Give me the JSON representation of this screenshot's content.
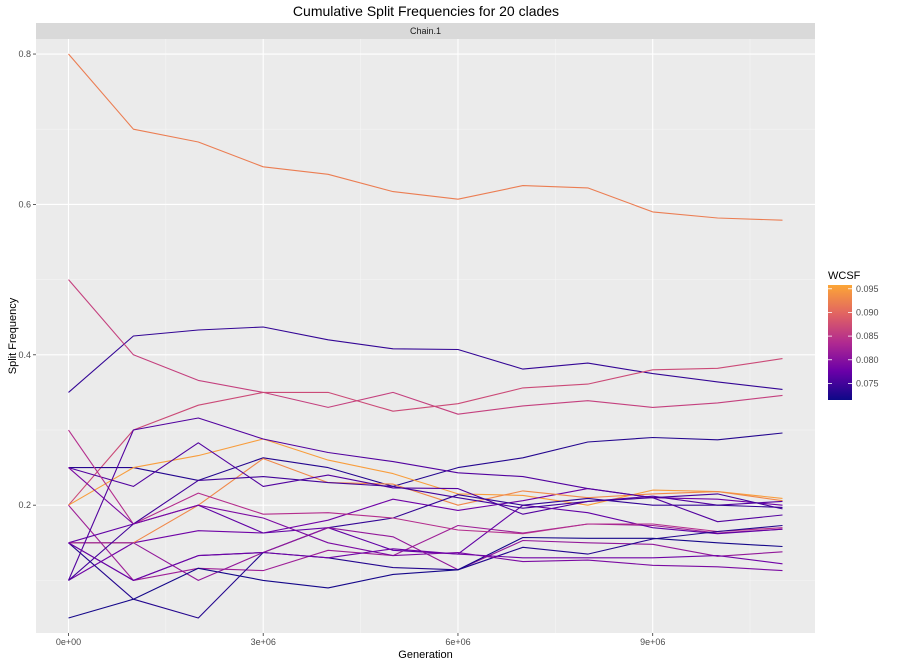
{
  "chart_data": {
    "type": "line",
    "title": "Cumulative Split Frequencies for 20 clades",
    "facet_label": "Chain.1",
    "xlabel": "Generation",
    "ylabel": "Split Frequency",
    "x_ticks": [
      0,
      3000000,
      6000000,
      9000000
    ],
    "x_tick_labels": [
      "0e+00",
      "3e+06",
      "6e+06",
      "9e+06"
    ],
    "y_ticks": [
      0.2,
      0.4,
      0.6,
      0.8
    ],
    "y_tick_labels": [
      "0.2",
      "0.4",
      "0.6",
      "0.8"
    ],
    "xlim": [
      -500000,
      11500000
    ],
    "ylim": [
      0.03,
      0.82
    ],
    "grid": true,
    "x": [
      0,
      1000000,
      2000000,
      3000000,
      4000000,
      5000000,
      6000000,
      7000000,
      8000000,
      9000000,
      10000000,
      11000000
    ],
    "legend": {
      "title": "WCSF",
      "position": "right",
      "range": [
        0.0715,
        0.0958
      ],
      "ticks": [
        0.075,
        0.08,
        0.085,
        0.09,
        0.095
      ],
      "tick_labels": [
        "0.075",
        "0.080",
        "0.085",
        "0.090",
        "0.095"
      ],
      "colors": [
        "#0d0887",
        "#6a00a8",
        "#b12a90",
        "#e16462",
        "#fca636"
      ]
    },
    "series": [
      {
        "wcsf": 0.092,
        "values": [
          0.8,
          0.7,
          0.683,
          0.65,
          0.64,
          0.617,
          0.607,
          0.625,
          0.622,
          0.59,
          0.582,
          0.579
        ]
      },
      {
        "wcsf": 0.074,
        "values": [
          0.35,
          0.425,
          0.433,
          0.437,
          0.42,
          0.408,
          0.407,
          0.381,
          0.389,
          0.375,
          0.364,
          0.354
        ]
      },
      {
        "wcsf": 0.086,
        "values": [
          0.5,
          0.4,
          0.366,
          0.35,
          0.33,
          0.35,
          0.321,
          0.332,
          0.339,
          0.33,
          0.336,
          0.346
        ]
      },
      {
        "wcsf": 0.087,
        "values": [
          0.2,
          0.3,
          0.333,
          0.35,
          0.35,
          0.325,
          0.335,
          0.356,
          0.361,
          0.38,
          0.382,
          0.395
        ]
      },
      {
        "wcsf": 0.073,
        "values": [
          0.25,
          0.25,
          0.233,
          0.263,
          0.25,
          0.225,
          0.25,
          0.263,
          0.284,
          0.29,
          0.287,
          0.296
        ]
      },
      {
        "wcsf": 0.095,
        "values": [
          0.2,
          0.25,
          0.266,
          0.288,
          0.26,
          0.242,
          0.215,
          0.213,
          0.2,
          0.22,
          0.218,
          0.209
        ]
      },
      {
        "wcsf": 0.078,
        "values": [
          0.1,
          0.15,
          0.166,
          0.163,
          0.18,
          0.208,
          0.193,
          0.206,
          0.222,
          0.21,
          0.208,
          0.2
        ]
      },
      {
        "wcsf": 0.093,
        "values": [
          0.15,
          0.15,
          0.2,
          0.262,
          0.23,
          0.228,
          0.2,
          0.219,
          0.21,
          0.215,
          0.218,
          0.206
        ]
      },
      {
        "wcsf": 0.076,
        "values": [
          0.25,
          0.225,
          0.283,
          0.225,
          0.24,
          0.223,
          0.222,
          0.188,
          0.205,
          0.212,
          0.2,
          0.205
        ]
      },
      {
        "wcsf": 0.082,
        "values": [
          0.2,
          0.1,
          0.116,
          0.113,
          0.14,
          0.133,
          0.173,
          0.163,
          0.175,
          0.173,
          0.163,
          0.168
        ]
      },
      {
        "wcsf": 0.077,
        "values": [
          0.15,
          0.175,
          0.2,
          0.163,
          0.17,
          0.14,
          0.135,
          0.2,
          0.19,
          0.17,
          0.162,
          0.168
        ]
      },
      {
        "wcsf": 0.074,
        "values": [
          0.15,
          0.1,
          0.133,
          0.137,
          0.17,
          0.183,
          0.214,
          0.2,
          0.209,
          0.2,
          0.2,
          0.197
        ]
      },
      {
        "wcsf": 0.084,
        "values": [
          0.3,
          0.175,
          0.216,
          0.188,
          0.19,
          0.183,
          0.167,
          0.162,
          0.175,
          0.175,
          0.165,
          0.17
        ]
      },
      {
        "wcsf": 0.081,
        "values": [
          0.15,
          0.15,
          0.1,
          0.137,
          0.17,
          0.158,
          0.114,
          0.153,
          0.15,
          0.148,
          0.132,
          0.138
        ]
      },
      {
        "wcsf": 0.075,
        "values": [
          0.1,
          0.175,
          0.233,
          0.238,
          0.23,
          0.225,
          0.21,
          0.196,
          0.205,
          0.21,
          0.215,
          0.195
        ]
      },
      {
        "wcsf": 0.073,
        "values": [
          0.15,
          0.075,
          0.05,
          0.137,
          0.13,
          0.117,
          0.114,
          0.144,
          0.135,
          0.155,
          0.165,
          0.173
        ]
      },
      {
        "wcsf": 0.072,
        "values": [
          0.05,
          0.075,
          0.116,
          0.1,
          0.09,
          0.108,
          0.114,
          0.157,
          0.156,
          0.156,
          0.15,
          0.145
        ]
      },
      {
        "wcsf": 0.079,
        "values": [
          0.25,
          0.175,
          0.2,
          0.183,
          0.15,
          0.133,
          0.137,
          0.125,
          0.127,
          0.12,
          0.118,
          0.113
        ]
      },
      {
        "wcsf": 0.076,
        "values": [
          0.1,
          0.3,
          0.316,
          0.288,
          0.27,
          0.258,
          0.243,
          0.238,
          0.222,
          0.21,
          0.178,
          0.187
        ]
      },
      {
        "wcsf": 0.078,
        "values": [
          0.15,
          0.1,
          0.133,
          0.137,
          0.13,
          0.142,
          0.135,
          0.13,
          0.13,
          0.13,
          0.133,
          0.122
        ]
      }
    ]
  }
}
